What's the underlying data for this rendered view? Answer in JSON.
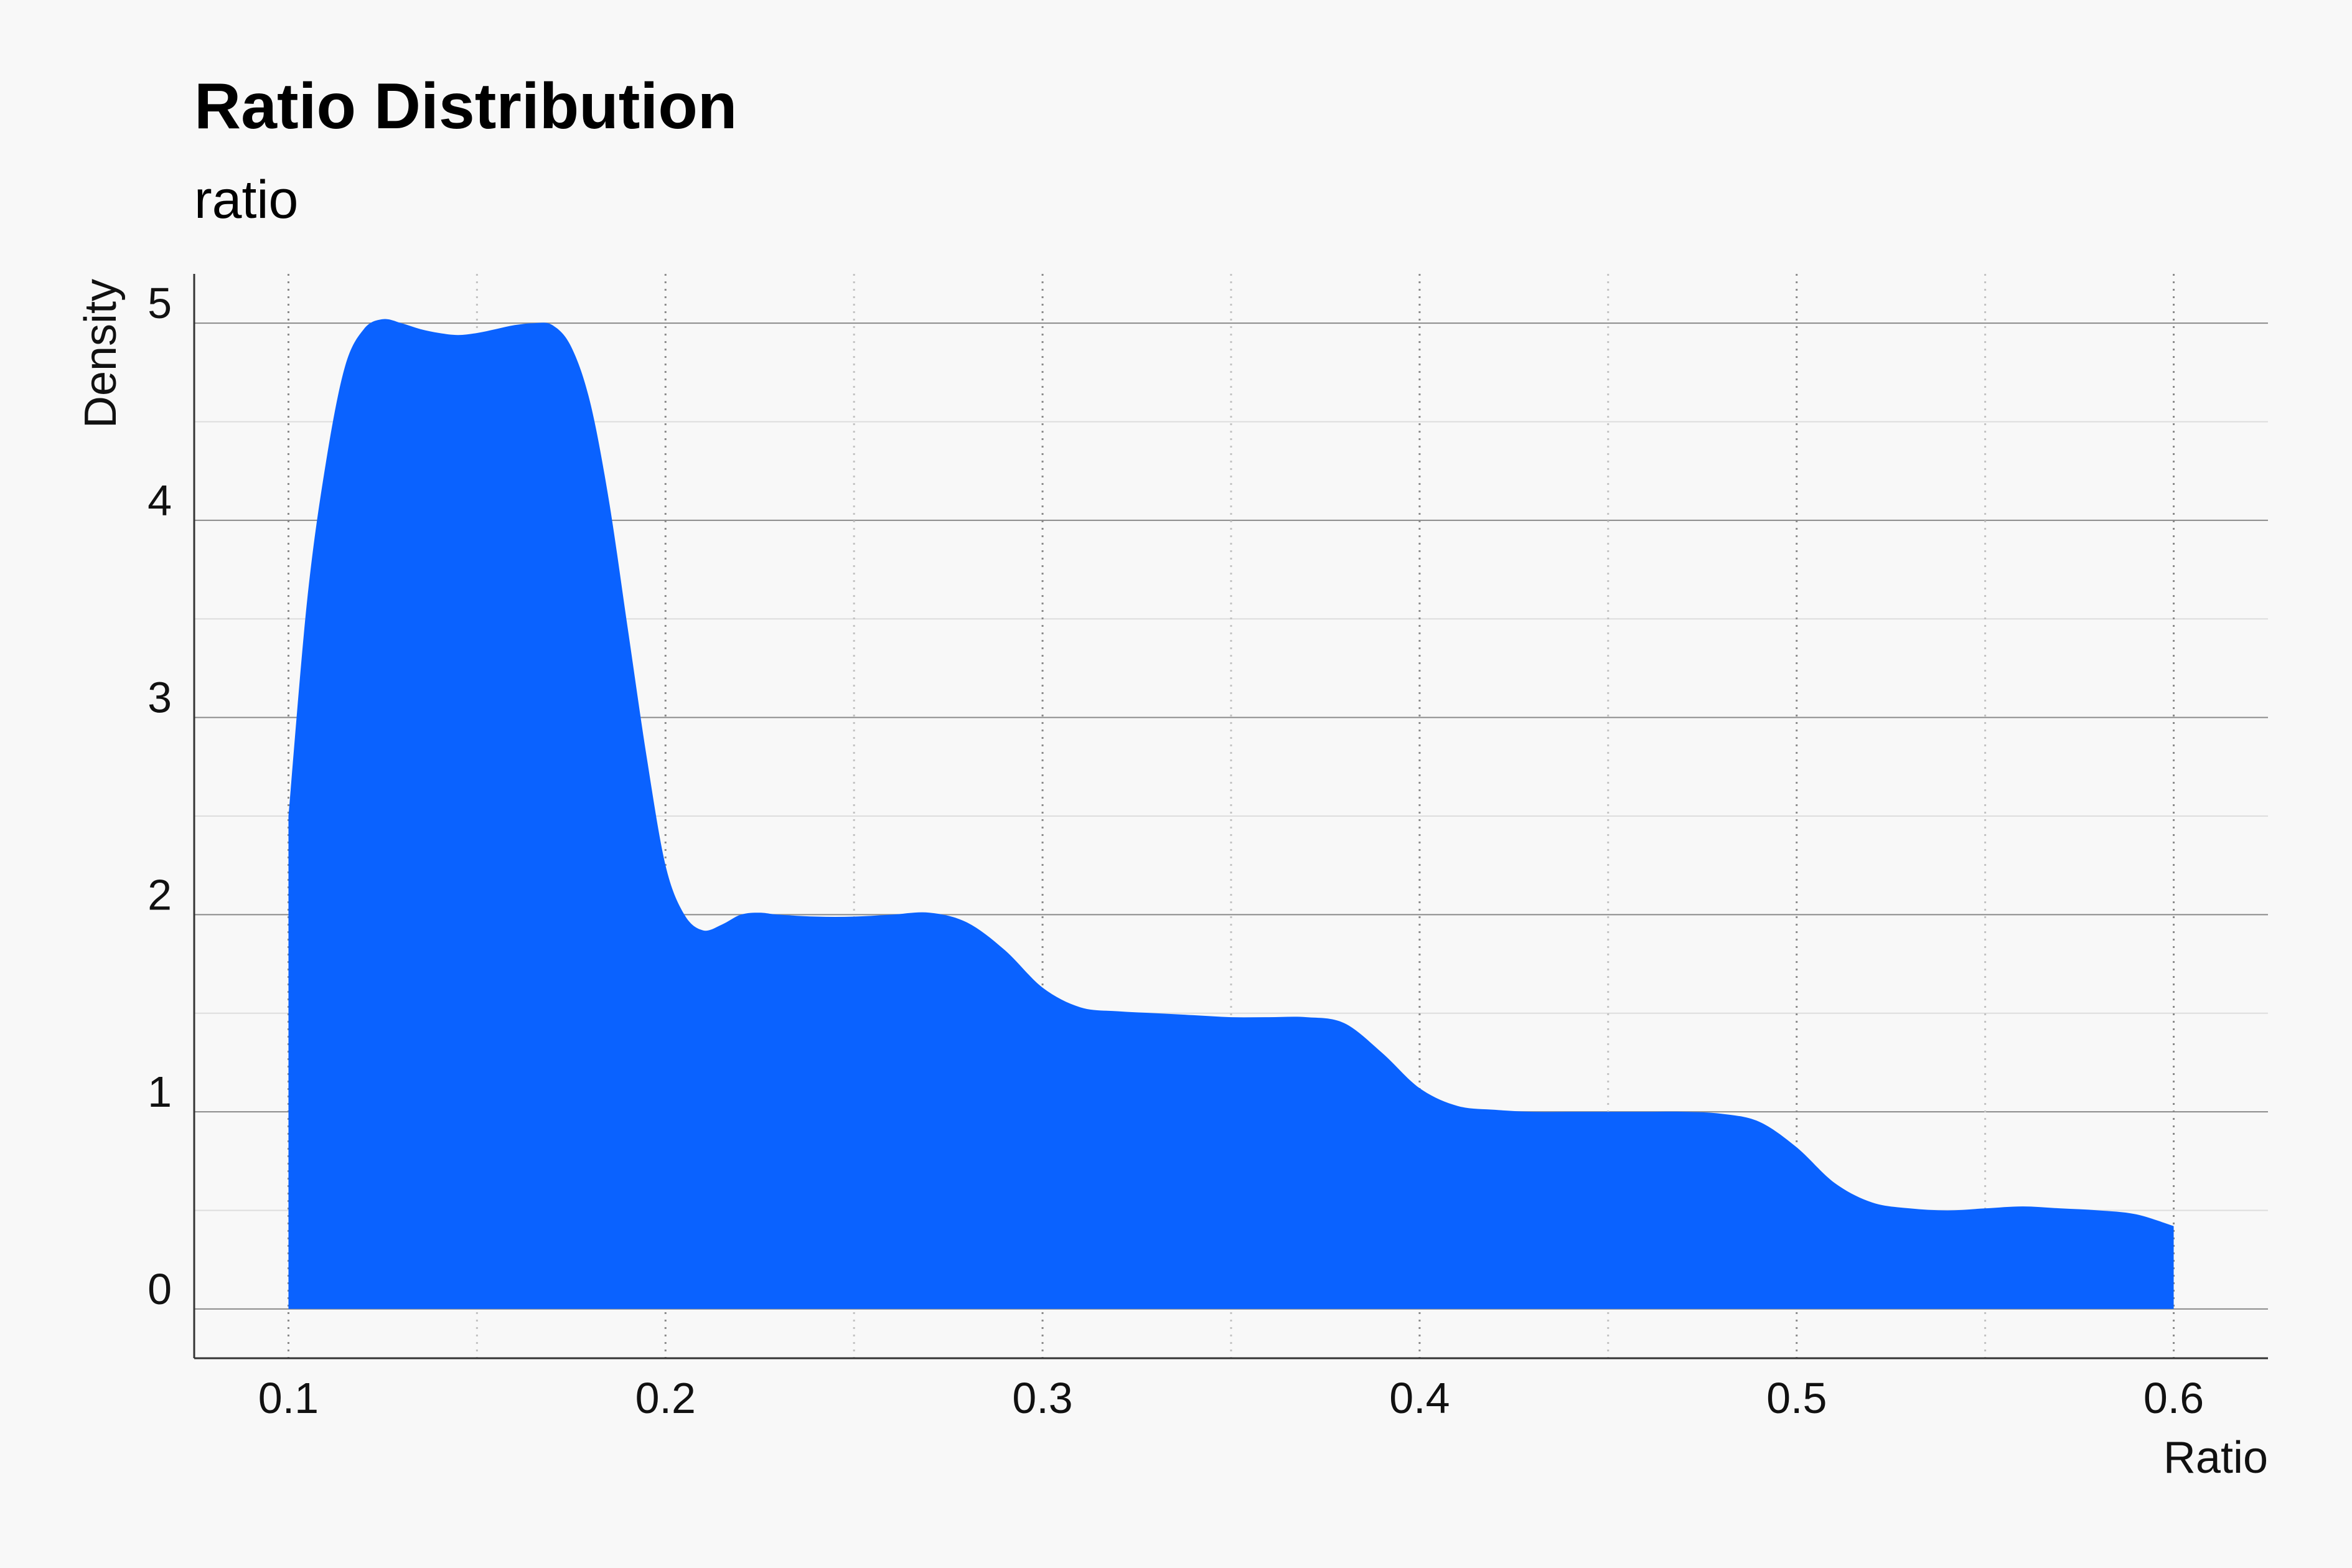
{
  "chart_data": {
    "type": "area",
    "title": "Ratio Distribution",
    "subtitle": "ratio",
    "xlabel": "Ratio",
    "ylabel": "Density",
    "xlim": [
      0.075,
      0.625
    ],
    "ylim": [
      -0.25,
      5.25
    ],
    "x_ticks": [
      0.1,
      0.2,
      0.3,
      0.4,
      0.5,
      0.6
    ],
    "x_tick_labels": [
      "0.1",
      "0.2",
      "0.3",
      "0.4",
      "0.5",
      "0.6"
    ],
    "y_ticks": [
      0,
      1,
      2,
      3,
      4,
      5
    ],
    "y_tick_labels": [
      "0",
      "1",
      "2",
      "3",
      "4",
      "5"
    ],
    "grid": true,
    "fill_color": "#0a62ff",
    "series": [
      {
        "x": [
          0.1,
          0.105,
          0.11,
          0.115,
          0.12,
          0.125,
          0.13,
          0.135,
          0.14,
          0.145,
          0.15,
          0.155,
          0.16,
          0.165,
          0.17,
          0.175,
          0.18,
          0.185,
          0.19,
          0.195,
          0.2,
          0.205,
          0.21,
          0.215,
          0.22,
          0.225,
          0.23,
          0.24,
          0.25,
          0.26,
          0.27,
          0.28,
          0.29,
          0.3,
          0.31,
          0.32,
          0.33,
          0.34,
          0.35,
          0.36,
          0.37,
          0.38,
          0.39,
          0.4,
          0.41,
          0.42,
          0.43,
          0.44,
          0.45,
          0.46,
          0.47,
          0.48,
          0.49,
          0.5,
          0.51,
          0.52,
          0.53,
          0.54,
          0.55,
          0.56,
          0.57,
          0.58,
          0.59,
          0.6
        ],
        "y": [
          2.5,
          3.6,
          4.3,
          4.78,
          4.97,
          5.02,
          5.0,
          4.97,
          4.95,
          4.94,
          4.95,
          4.97,
          4.99,
          5.0,
          4.99,
          4.88,
          4.6,
          4.1,
          3.45,
          2.8,
          2.25,
          2.0,
          1.92,
          1.95,
          2.0,
          2.01,
          2.0,
          1.99,
          1.99,
          2.0,
          2.01,
          1.96,
          1.82,
          1.63,
          1.53,
          1.51,
          1.5,
          1.49,
          1.48,
          1.48,
          1.48,
          1.45,
          1.3,
          1.12,
          1.03,
          1.01,
          1.0,
          1.0,
          1.0,
          1.0,
          1.0,
          0.99,
          0.95,
          0.82,
          0.64,
          0.54,
          0.51,
          0.5,
          0.51,
          0.52,
          0.51,
          0.5,
          0.48,
          0.42
        ]
      }
    ]
  }
}
